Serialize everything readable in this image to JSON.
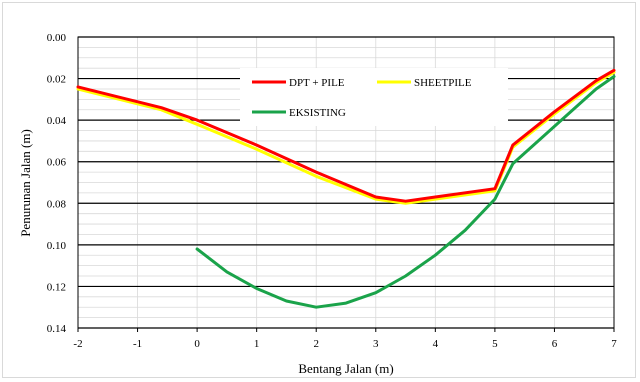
{
  "chart_data": {
    "type": "line",
    "title": "",
    "xlabel": "Bentang Jalan (m)",
    "ylabel": "Penurunan Jalan (m)",
    "xlim": [
      -2,
      7
    ],
    "ylim": [
      0,
      0.14
    ],
    "y_inverted": true,
    "grid": true,
    "legend_placement": "top-center",
    "x_ticks": [
      "-2",
      "-1",
      "0",
      "1",
      "2",
      "3",
      "4",
      "5",
      "6",
      "7"
    ],
    "y_ticks": [
      "0.00",
      "0.02",
      "0.04",
      "0.06",
      "0.08",
      "0.10",
      "0.12",
      "0.14"
    ],
    "series": [
      {
        "name": "SHEETPILE",
        "color": "#ffff00",
        "x": [
          -2,
          -0.6,
          0,
          1,
          2,
          3,
          3.5,
          4,
          5,
          5.3,
          6,
          6.7,
          7
        ],
        "y": [
          0.025,
          0.035,
          0.042,
          0.054,
          0.067,
          0.078,
          0.08,
          0.078,
          0.074,
          0.053,
          0.037,
          0.022,
          0.017
        ]
      },
      {
        "name": "DPT + PILE",
        "color": "#ff0000",
        "x": [
          -2,
          -0.6,
          0,
          1,
          2,
          3,
          3.5,
          4,
          5,
          5.3,
          6,
          6.7,
          7
        ],
        "y": [
          0.024,
          0.034,
          0.04,
          0.052,
          0.065,
          0.077,
          0.079,
          0.077,
          0.073,
          0.052,
          0.036,
          0.021,
          0.016
        ]
      },
      {
        "name": "EKSISTING",
        "color": "#1aa34a",
        "x": [
          0,
          0.5,
          1,
          1.5,
          2,
          2.5,
          3,
          3.5,
          4,
          4.5,
          5,
          5.3,
          6,
          6.7,
          7
        ],
        "y": [
          0.102,
          0.113,
          0.121,
          0.127,
          0.13,
          0.128,
          0.123,
          0.115,
          0.105,
          0.093,
          0.078,
          0.061,
          0.043,
          0.025,
          0.019
        ]
      }
    ],
    "legend": [
      {
        "label": "DPT + PILE",
        "color": "#ff0000"
      },
      {
        "label": "SHEETPILE",
        "color": "#ffff00"
      },
      {
        "label": "EKSISTING",
        "color": "#1aa34a"
      }
    ]
  }
}
